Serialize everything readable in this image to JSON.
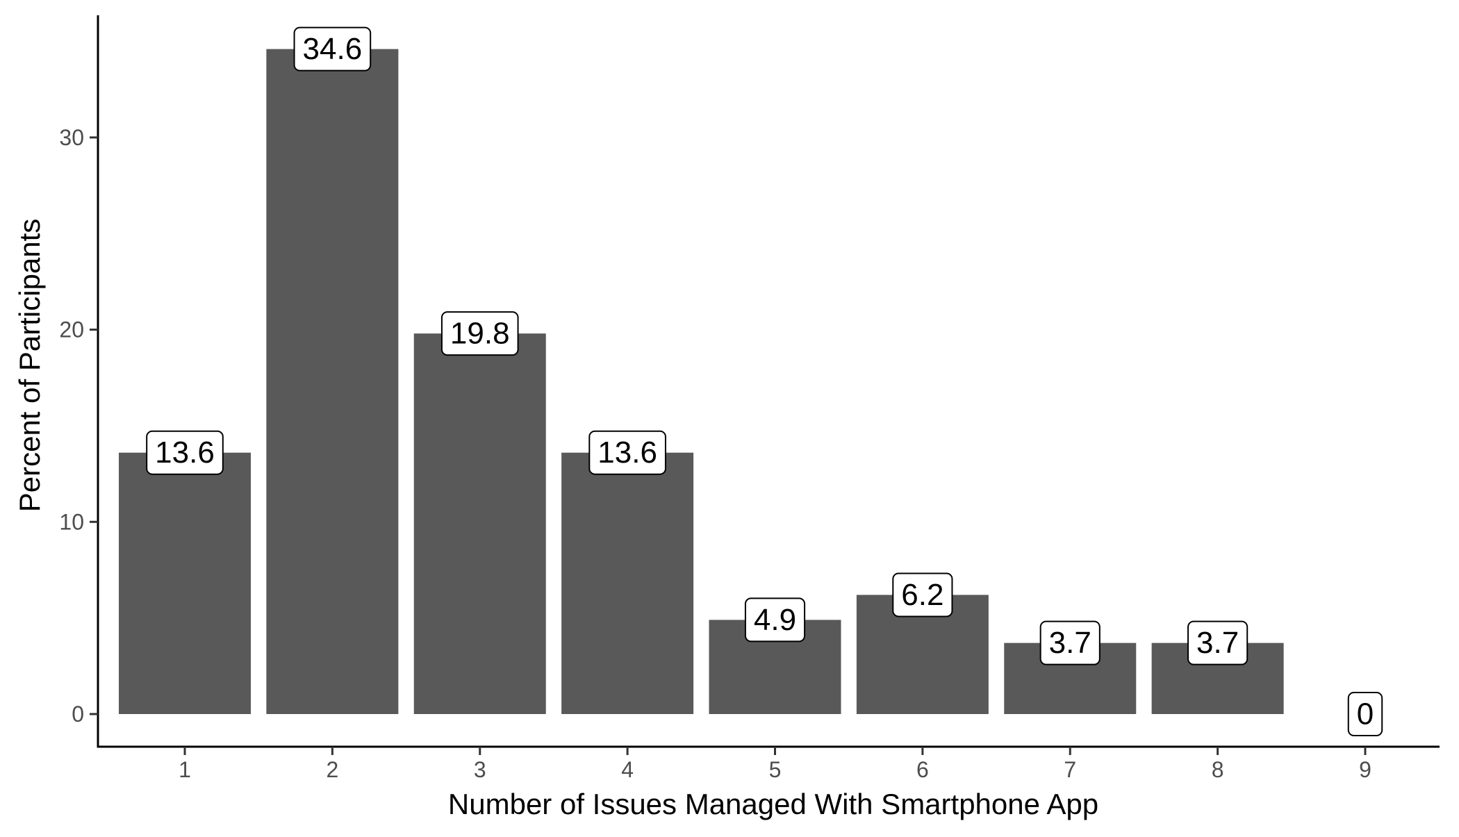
{
  "chart_data": {
    "type": "bar",
    "title": "",
    "xlabel": "Number of Issues Managed With Smartphone App",
    "ylabel": "Percent of Participants",
    "categories": [
      "1",
      "2",
      "3",
      "4",
      "5",
      "6",
      "7",
      "8",
      "9"
    ],
    "values": [
      13.6,
      34.6,
      19.8,
      13.6,
      4.9,
      6.2,
      3.7,
      3.7,
      0
    ],
    "value_labels": [
      "13.6",
      "34.6",
      "19.8",
      "13.6",
      "4.9",
      "6.2",
      "3.7",
      "3.7",
      "0"
    ],
    "yticks": [
      0,
      10,
      20,
      30
    ],
    "ytick_labels": [
      "0",
      "10",
      "20",
      "30"
    ],
    "ylim": [
      -1.7,
      36.3
    ],
    "grid": false,
    "legend": "none",
    "colors": {
      "bar": "#595959",
      "axis": "#000000",
      "tick_text": "#4d4d4d",
      "label_box_fill": "#ffffff",
      "label_box_border": "#000000"
    }
  }
}
